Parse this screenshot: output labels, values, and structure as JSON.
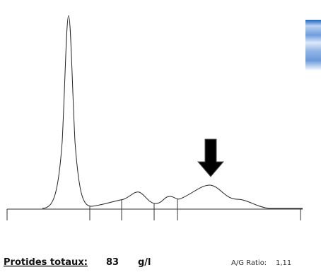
{
  "total": {
    "label": "Protides totaux:",
    "value": 83,
    "unit": "g/l"
  },
  "ratio": {
    "label": "A/G Ratio:",
    "value": "1,11"
  }
}
